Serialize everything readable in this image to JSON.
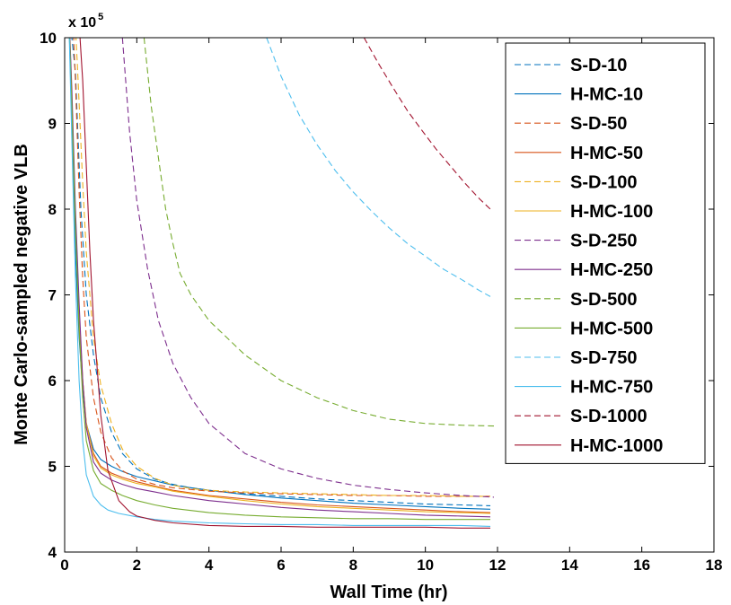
{
  "chart_data": {
    "type": "line",
    "title": "",
    "xlabel": "Wall Time (hr)",
    "ylabel": "Monte Carlo-sampled negative VLB",
    "y_multiplier": "x 10",
    "y_multiplier_exp": "5",
    "xlim": [
      0,
      18
    ],
    "ylim": [
      4,
      10
    ],
    "xticks": [
      0,
      2,
      4,
      6,
      8,
      10,
      12,
      14,
      16,
      18
    ],
    "yticks": [
      4,
      5,
      6,
      7,
      8,
      9,
      10
    ],
    "legend_position": "top-right",
    "series": [
      {
        "name": "S-D-10",
        "style": "dashed",
        "color": "#0072BD",
        "x": [
          0.1,
          0.2,
          0.3,
          0.45,
          0.6,
          0.8,
          1.0,
          1.3,
          1.6,
          2.0,
          2.5,
          3.0,
          3.5,
          4.0,
          5.0,
          6.0,
          7.0,
          8.0,
          9.0,
          10.0,
          11.0,
          11.8
        ],
        "y": [
          10.5,
          10.0,
          9.6,
          8.0,
          7.0,
          6.3,
          5.8,
          5.4,
          5.15,
          4.97,
          4.85,
          4.79,
          4.75,
          4.72,
          4.68,
          4.65,
          4.62,
          4.6,
          4.58,
          4.56,
          4.55,
          4.54
        ]
      },
      {
        "name": "H-MC-10",
        "style": "solid",
        "color": "#0072BD",
        "x": [
          0.1,
          0.2,
          0.3,
          0.4,
          0.5,
          0.6,
          0.8,
          1.0,
          1.3,
          1.6,
          2.0,
          2.5,
          3.0,
          4.0,
          5.0,
          6.0,
          7.0,
          8.0,
          9.0,
          10.0,
          11.0,
          11.8
        ],
        "y": [
          10.5,
          9.0,
          7.5,
          6.5,
          5.9,
          5.5,
          5.2,
          5.08,
          5.0,
          4.94,
          4.88,
          4.83,
          4.78,
          4.72,
          4.67,
          4.63,
          4.6,
          4.57,
          4.55,
          4.53,
          4.51,
          4.5
        ]
      },
      {
        "name": "S-D-50",
        "style": "dashed",
        "color": "#D95319",
        "x": [
          0.2,
          0.3,
          0.4,
          0.5,
          0.6,
          0.8,
          1.0,
          1.3,
          1.6,
          2.0,
          2.5,
          3.0,
          4.0,
          5.0,
          6.0,
          7.0,
          8.0,
          9.0,
          10.0,
          11.0,
          11.8
        ],
        "y": [
          10.5,
          9.5,
          8.2,
          7.2,
          6.5,
          5.8,
          5.4,
          5.1,
          4.95,
          4.85,
          4.79,
          4.75,
          4.71,
          4.69,
          4.68,
          4.67,
          4.66,
          4.66,
          4.65,
          4.65,
          4.65
        ]
      },
      {
        "name": "H-MC-50",
        "style": "solid",
        "color": "#D95319",
        "x": [
          0.1,
          0.2,
          0.3,
          0.4,
          0.5,
          0.6,
          0.8,
          1.0,
          1.3,
          1.6,
          2.0,
          2.5,
          3.0,
          4.0,
          5.0,
          6.0,
          7.0,
          8.0,
          9.0,
          10.0,
          11.0,
          11.8
        ],
        "y": [
          10.5,
          9.2,
          7.8,
          6.7,
          6.0,
          5.5,
          5.15,
          5.0,
          4.92,
          4.87,
          4.82,
          4.77,
          4.72,
          4.66,
          4.62,
          4.58,
          4.55,
          4.53,
          4.51,
          4.49,
          4.47,
          4.46
        ]
      },
      {
        "name": "S-D-100",
        "style": "dashed",
        "color": "#EDB120",
        "x": [
          0.25,
          0.35,
          0.5,
          0.6,
          0.8,
          1.0,
          1.3,
          1.6,
          2.0,
          2.5,
          3.0,
          3.5,
          4.0,
          5.0,
          6.0,
          7.0,
          8.0,
          9.0,
          10.0,
          11.0,
          11.8
        ],
        "y": [
          10.5,
          9.7,
          8.3,
          7.5,
          6.5,
          5.95,
          5.5,
          5.2,
          5.0,
          4.86,
          4.78,
          4.74,
          4.72,
          4.7,
          4.69,
          4.68,
          4.67,
          4.66,
          4.66,
          4.65,
          4.65
        ]
      },
      {
        "name": "H-MC-100",
        "style": "solid",
        "color": "#EDB120",
        "x": [
          0.1,
          0.2,
          0.3,
          0.4,
          0.5,
          0.6,
          0.8,
          1.0,
          1.3,
          1.6,
          2.0,
          2.5,
          3.0,
          4.0,
          5.0,
          6.0,
          7.0,
          8.0,
          9.0,
          10.0,
          11.0,
          11.8
        ],
        "y": [
          10.5,
          9.3,
          7.9,
          6.8,
          6.0,
          5.5,
          5.12,
          4.98,
          4.9,
          4.85,
          4.8,
          4.76,
          4.71,
          4.65,
          4.6,
          4.56,
          4.53,
          4.51,
          4.49,
          4.47,
          4.46,
          4.45
        ]
      },
      {
        "name": "S-D-250",
        "style": "dashed",
        "color": "#7E2F8E",
        "x": [
          1.6,
          1.8,
          2.0,
          2.3,
          2.6,
          3.0,
          3.5,
          4.0,
          5.0,
          6.0,
          7.0,
          8.0,
          9.0,
          10.0,
          11.0,
          11.9
        ],
        "y": [
          10.0,
          8.9,
          8.1,
          7.3,
          6.7,
          6.2,
          5.8,
          5.5,
          5.15,
          4.97,
          4.86,
          4.78,
          4.73,
          4.69,
          4.66,
          4.64
        ]
      },
      {
        "name": "H-MC-250",
        "style": "solid",
        "color": "#7E2F8E",
        "x": [
          0.1,
          0.2,
          0.3,
          0.4,
          0.5,
          0.6,
          0.8,
          1.0,
          1.3,
          1.6,
          2.0,
          2.5,
          3.0,
          4.0,
          5.0,
          6.0,
          7.0,
          8.0,
          9.0,
          10.0,
          11.0,
          11.8
        ],
        "y": [
          10.5,
          9.4,
          8.0,
          6.9,
          6.0,
          5.45,
          5.05,
          4.92,
          4.84,
          4.79,
          4.74,
          4.7,
          4.66,
          4.6,
          4.56,
          4.52,
          4.49,
          4.47,
          4.45,
          4.43,
          4.42,
          4.41
        ]
      },
      {
        "name": "S-D-500",
        "style": "dashed",
        "color": "#77AC30",
        "x": [
          2.2,
          2.4,
          2.6,
          2.8,
          3.0,
          3.2,
          3.5,
          4.0,
          5.0,
          6.0,
          7.0,
          8.0,
          9.0,
          10.0,
          11.0,
          11.9
        ],
        "y": [
          10.0,
          9.2,
          8.6,
          8.0,
          7.6,
          7.25,
          7.0,
          6.7,
          6.3,
          6.0,
          5.8,
          5.65,
          5.55,
          5.5,
          5.48,
          5.47
        ]
      },
      {
        "name": "H-MC-500",
        "style": "solid",
        "color": "#77AC30",
        "x": [
          0.1,
          0.2,
          0.3,
          0.4,
          0.5,
          0.6,
          0.8,
          1.0,
          1.3,
          1.6,
          2.0,
          2.5,
          3.0,
          4.0,
          5.0,
          6.0,
          7.0,
          8.0,
          9.0,
          10.0,
          11.0,
          11.8
        ],
        "y": [
          10.5,
          9.2,
          7.8,
          6.6,
          5.8,
          5.3,
          4.95,
          4.8,
          4.72,
          4.66,
          4.6,
          4.55,
          4.51,
          4.46,
          4.43,
          4.41,
          4.4,
          4.39,
          4.39,
          4.38,
          4.38,
          4.38
        ]
      },
      {
        "name": "S-D-750",
        "style": "dashed",
        "color": "#4DBEEE",
        "x": [
          5.6,
          6.0,
          6.5,
          7.0,
          7.5,
          8.0,
          8.5,
          9.0,
          9.5,
          10.0,
          10.5,
          11.0,
          11.5,
          11.8
        ],
        "y": [
          10.0,
          9.55,
          9.1,
          8.75,
          8.45,
          8.2,
          7.98,
          7.78,
          7.6,
          7.45,
          7.3,
          7.18,
          7.05,
          6.98
        ]
      },
      {
        "name": "H-MC-750",
        "style": "solid",
        "color": "#4DBEEE",
        "x": [
          0.1,
          0.2,
          0.3,
          0.4,
          0.5,
          0.6,
          0.8,
          1.0,
          1.2,
          1.5,
          2.0,
          2.5,
          3.0,
          4.0,
          5.0,
          6.0,
          7.0,
          8.0,
          9.0,
          10.0,
          11.0,
          11.8
        ],
        "y": [
          10.5,
          8.8,
          7.2,
          6.0,
          5.3,
          4.9,
          4.65,
          4.55,
          4.49,
          4.45,
          4.41,
          4.38,
          4.36,
          4.34,
          4.33,
          4.32,
          4.32,
          4.31,
          4.31,
          4.31,
          4.31,
          4.3
        ]
      },
      {
        "name": "S-D-1000",
        "style": "dashed",
        "color": "#A2142F",
        "x": [
          8.3,
          8.7,
          9.1,
          9.5,
          9.9,
          10.3,
          10.7,
          11.1,
          11.5,
          11.8
        ],
        "y": [
          10.0,
          9.7,
          9.42,
          9.15,
          8.92,
          8.7,
          8.5,
          8.3,
          8.12,
          8.0
        ]
      },
      {
        "name": "H-MC-1000",
        "style": "solid",
        "color": "#A2142F",
        "x": [
          0.35,
          0.5,
          0.6,
          0.7,
          0.8,
          1.0,
          1.2,
          1.5,
          1.8,
          2.0,
          2.5,
          3.0,
          4.0,
          5.0,
          6.0,
          7.0,
          8.0,
          9.0,
          10.0,
          11.0,
          11.8
        ],
        "y": [
          10.5,
          9.5,
          8.5,
          7.5,
          6.7,
          5.6,
          4.95,
          4.6,
          4.47,
          4.42,
          4.37,
          4.34,
          4.31,
          4.3,
          4.3,
          4.29,
          4.29,
          4.29,
          4.29,
          4.28,
          4.28
        ]
      }
    ]
  }
}
